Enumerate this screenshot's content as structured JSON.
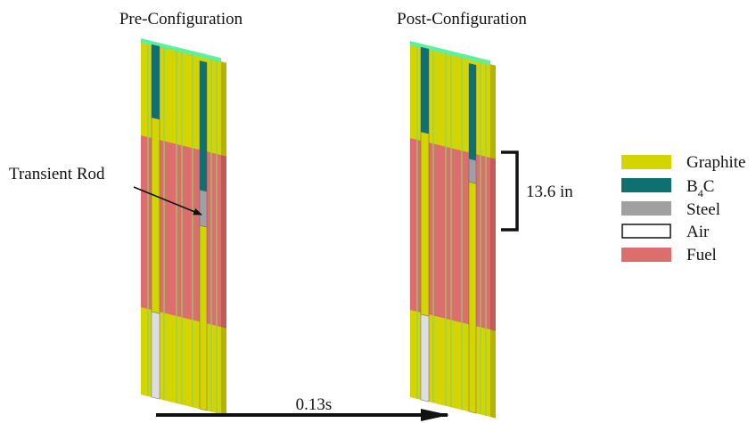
{
  "pre_label": "Pre-Configuration",
  "post_label": "Post-Configuration",
  "transient_rod_label": "Transient Rod",
  "dimension_label": "13.6 in",
  "time_label": "0.13s",
  "legend": [
    {
      "label": "Graphite"
    },
    {
      "base": "B",
      "sub": "4",
      "rest": "C"
    },
    {
      "label": "Steel"
    },
    {
      "label": "Air"
    },
    {
      "label": "Fuel"
    }
  ]
}
